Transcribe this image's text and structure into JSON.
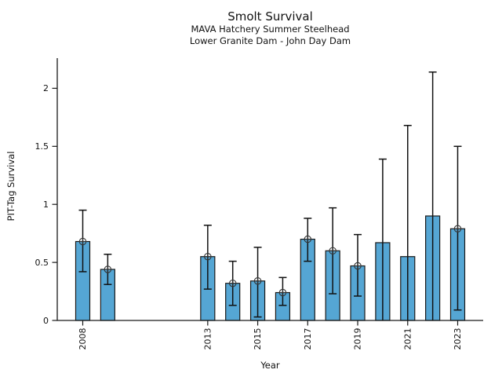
{
  "chart_data": {
    "type": "bar",
    "title": "Smolt Survival",
    "subtitle1": "MAVA Hatchery Summer Steelhead",
    "subtitle2": "Lower Granite Dam - John Day Dam",
    "xlabel": "Year",
    "ylabel": "PIT-Tag Survival",
    "x_ticks": [
      "2008",
      "2013",
      "2015",
      "2017",
      "2019",
      "2021",
      "2023"
    ],
    "y_ticks": [
      "0",
      "0.5",
      "1",
      "1.5",
      "2"
    ],
    "ylim": [
      0,
      2.26
    ],
    "grid": false,
    "legend": "none",
    "bar_color": "#55a6d4",
    "bar_edge_color": "#1a1a1a",
    "error_color": "#111111",
    "marker_style": "open-circle-plus",
    "points": [
      {
        "year": 2008,
        "value": 0.68,
        "ci_low": 0.42,
        "ci_high": 0.95,
        "marker": true
      },
      {
        "year": 2009,
        "value": 0.44,
        "ci_low": 0.31,
        "ci_high": 0.57,
        "marker": true
      },
      {
        "year": 2013,
        "value": 0.55,
        "ci_low": 0.27,
        "ci_high": 0.82,
        "marker": true
      },
      {
        "year": 2014,
        "value": 0.32,
        "ci_low": 0.13,
        "ci_high": 0.51,
        "marker": true
      },
      {
        "year": 2015,
        "value": 0.34,
        "ci_low": 0.03,
        "ci_high": 0.63,
        "marker": true
      },
      {
        "year": 2016,
        "value": 0.24,
        "ci_low": 0.13,
        "ci_high": 0.37,
        "marker": true
      },
      {
        "year": 2017,
        "value": 0.7,
        "ci_low": 0.51,
        "ci_high": 0.88,
        "marker": true
      },
      {
        "year": 2018,
        "value": 0.6,
        "ci_low": 0.23,
        "ci_high": 0.97,
        "marker": true
      },
      {
        "year": 2019,
        "value": 0.47,
        "ci_low": 0.21,
        "ci_high": 0.74,
        "marker": true
      },
      {
        "year": 2020,
        "value": 0.67,
        "ci_low": 0.0,
        "ci_high": 1.39,
        "marker": false
      },
      {
        "year": 2021,
        "value": 0.55,
        "ci_low": 0.0,
        "ci_high": 1.68,
        "marker": false
      },
      {
        "year": 2022,
        "value": 0.9,
        "ci_low": 0.0,
        "ci_high": 2.14,
        "marker": false
      },
      {
        "year": 2023,
        "value": 0.79,
        "ci_low": 0.09,
        "ci_high": 1.5,
        "marker": true
      }
    ]
  }
}
